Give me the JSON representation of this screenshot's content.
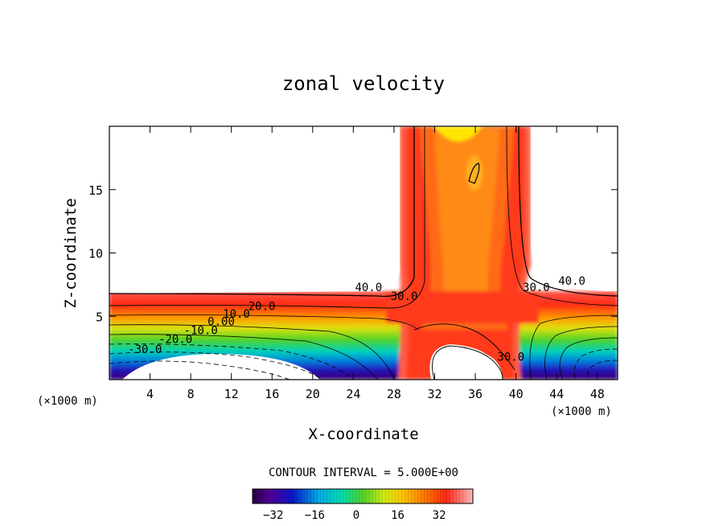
{
  "chart_data": {
    "type": "contour",
    "title": "zonal velocity",
    "xlabel": "X-coordinate",
    "ylabel": "Z-coordinate",
    "x_unit_left": "(×1000 m)",
    "x_unit_right": "(×1000 m)",
    "xlim": [
      0,
      50
    ],
    "ylim": [
      0,
      20
    ],
    "x_ticks": [
      4,
      8,
      12,
      16,
      20,
      24,
      28,
      32,
      36,
      40,
      44,
      48
    ],
    "y_ticks": [
      5,
      10,
      15
    ],
    "contour_labels": [
      {
        "text": "40.0",
        "x": 25.5,
        "y": 7.0
      },
      {
        "text": "30.0",
        "x": 29.0,
        "y": 6.3
      },
      {
        "text": "30.0",
        "x": 42.0,
        "y": 7.0
      },
      {
        "text": "40.0",
        "x": 45.5,
        "y": 7.5
      },
      {
        "text": "20.0",
        "x": 15.0,
        "y": 5.5
      },
      {
        "text": "10.0",
        "x": 12.5,
        "y": 4.9
      },
      {
        "text": "0.00",
        "x": 11.0,
        "y": 4.3
      },
      {
        "text": "-10.0",
        "x": 9.0,
        "y": 3.6
      },
      {
        "text": "-20.0",
        "x": 6.5,
        "y": 2.9
      },
      {
        "text": "-30.0",
        "x": 3.5,
        "y": 2.1
      },
      {
        "text": "30.0",
        "x": 39.5,
        "y": 1.5
      }
    ],
    "contour_interval_label": "CONTOUR INTERVAL = 5.000E+00",
    "colorbar": {
      "range": [
        -40,
        45
      ],
      "ticks": [
        -32,
        -16,
        0,
        16,
        32
      ],
      "tick_labels": [
        "−32",
        "−16",
        "0",
        "16",
        "32"
      ]
    },
    "colors": {
      "low": "#3b0a6e",
      "zero": "#4ccc33",
      "high": "#ff3a1a",
      "peak": "#ffee00"
    }
  }
}
